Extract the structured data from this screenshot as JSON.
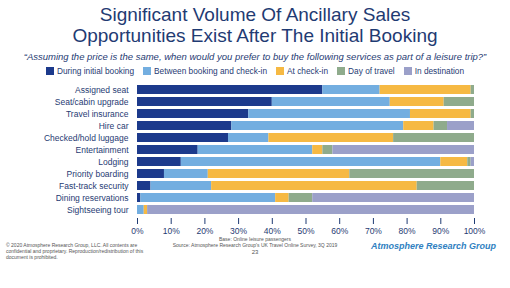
{
  "chart_data": {
    "type": "bar",
    "title": [
      "Significant Volume Of Ancillary Sales",
      "Opportunities Exist After The Initial Booking"
    ],
    "subtitle": "“Assuming the price is the same, when would you prefer to buy the following services as part of a leisure trip?”",
    "orientation": "horizontal",
    "stacked": true,
    "grid": false,
    "legend": "top",
    "categories": [
      "Assigned seat",
      "Seat/cabin upgrade",
      "Travel insurance",
      "Hire car",
      "Checked/hold luggage",
      "Entertainment",
      "Lodging",
      "Priority boarding",
      "Fast-track security",
      "Dining reservations",
      "Sightseeing tour"
    ],
    "series": [
      {
        "name": "During initial booking",
        "color": "#1c3a8c",
        "values": [
          55,
          40,
          33,
          28,
          27,
          18,
          13,
          8,
          4,
          1,
          0
        ]
      },
      {
        "name": "Between booking and check-in",
        "color": "#73aee0",
        "values": [
          17,
          35,
          48,
          51,
          12,
          34,
          77,
          13,
          18,
          40,
          2
        ]
      },
      {
        "name": "At check-in",
        "color": "#f6b943",
        "values": [
          27,
          16,
          18,
          9,
          37,
          3,
          8,
          42,
          61,
          4,
          1
        ]
      },
      {
        "name": "Day of travel",
        "color": "#8fab8c",
        "values": [
          1,
          9,
          1,
          4,
          24,
          3,
          1,
          37,
          17,
          7,
          0
        ]
      },
      {
        "name": "In destination",
        "color": "#9ba0c9",
        "values": [
          0,
          0,
          0,
          8,
          0,
          42,
          1,
          0,
          0,
          48,
          97
        ]
      }
    ],
    "xlim": [
      0,
      100
    ],
    "xticks": [
      {
        "value": 0,
        "label": "0%"
      },
      {
        "value": 10,
        "label": "10%"
      },
      {
        "value": 20,
        "label": "20%"
      },
      {
        "value": 30,
        "label": "30%"
      },
      {
        "value": 40,
        "label": "40%"
      },
      {
        "value": 50,
        "label": "50%"
      },
      {
        "value": 60,
        "label": "60%"
      },
      {
        "value": 70,
        "label": "70%"
      },
      {
        "value": 80,
        "label": "80%"
      },
      {
        "value": 90,
        "label": "90%"
      },
      {
        "value": 100,
        "label": "100%"
      }
    ],
    "annotations": {
      "copyright": "© 2020 Atmosphere Research Group, LLC. All contents are confidential and proprietary. Reproduction/redistribution of this document is prohibited.",
      "base": "Base: Online leisure passengers",
      "source": "Source: Atmosphere Research Group's UK Travel Online Survey, 3Q 2019",
      "page": "23",
      "logo": "Atmosphere Research Group"
    }
  }
}
